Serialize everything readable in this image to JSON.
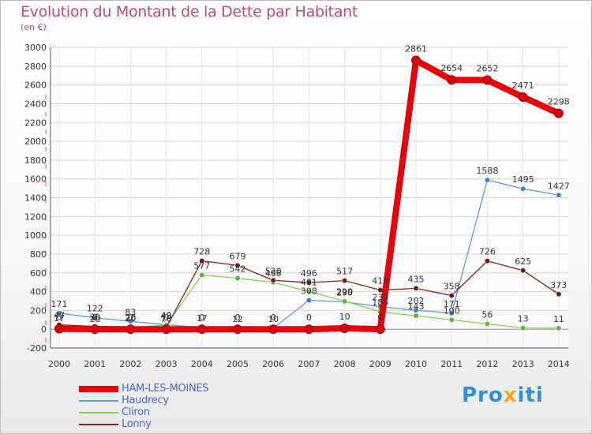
{
  "header": {
    "title": "Evolution du Montant de la Dette par Habitant",
    "unit": "(en €)"
  },
  "brand": {
    "text": "Proxiti",
    "color_primary": "#2f8fd0",
    "color_accent": "#f3a21d"
  },
  "chart_data": {
    "type": "line",
    "x": [
      2000,
      2001,
      2002,
      2003,
      2004,
      2005,
      2006,
      2007,
      2008,
      2009,
      2010,
      2011,
      2012,
      2013,
      2014
    ],
    "yticks": [
      -200,
      0,
      200,
      400,
      600,
      800,
      1000,
      1200,
      1400,
      1600,
      1800,
      2000,
      2200,
      2400,
      2600,
      2800,
      3000
    ],
    "ylim": [
      -200,
      3000
    ],
    "grid": true,
    "legend_position": "bottom-left",
    "series": [
      {
        "name": "HAM-LES-MOINES",
        "color": "#e8000b",
        "emphasis": true,
        "values": [
          5,
          0,
          0,
          0,
          0,
          0,
          0,
          0,
          10,
          0,
          2861,
          2654,
          2652,
          2471,
          2298
        ]
      },
      {
        "name": "Haudrecy",
        "color": "#5f9bd3",
        "values": [
          171,
          122,
          83,
          49,
          17,
          12,
          10,
          308,
          290,
          239,
          202,
          171,
          1588,
          1495,
          1427
        ]
      },
      {
        "name": "Cliron",
        "color": "#86cd5b",
        "values": [
          17,
          10,
          20,
          43,
          577,
          542,
          498,
          401,
          299,
          185,
          143,
          100,
          56,
          13,
          11
        ]
      },
      {
        "name": "Lonny",
        "color": "#7b2424",
        "values": [
          47,
          30,
          26,
          16,
          728,
          679,
          520,
          496,
          517,
          416,
          435,
          358,
          726,
          625,
          373
        ]
      }
    ]
  }
}
